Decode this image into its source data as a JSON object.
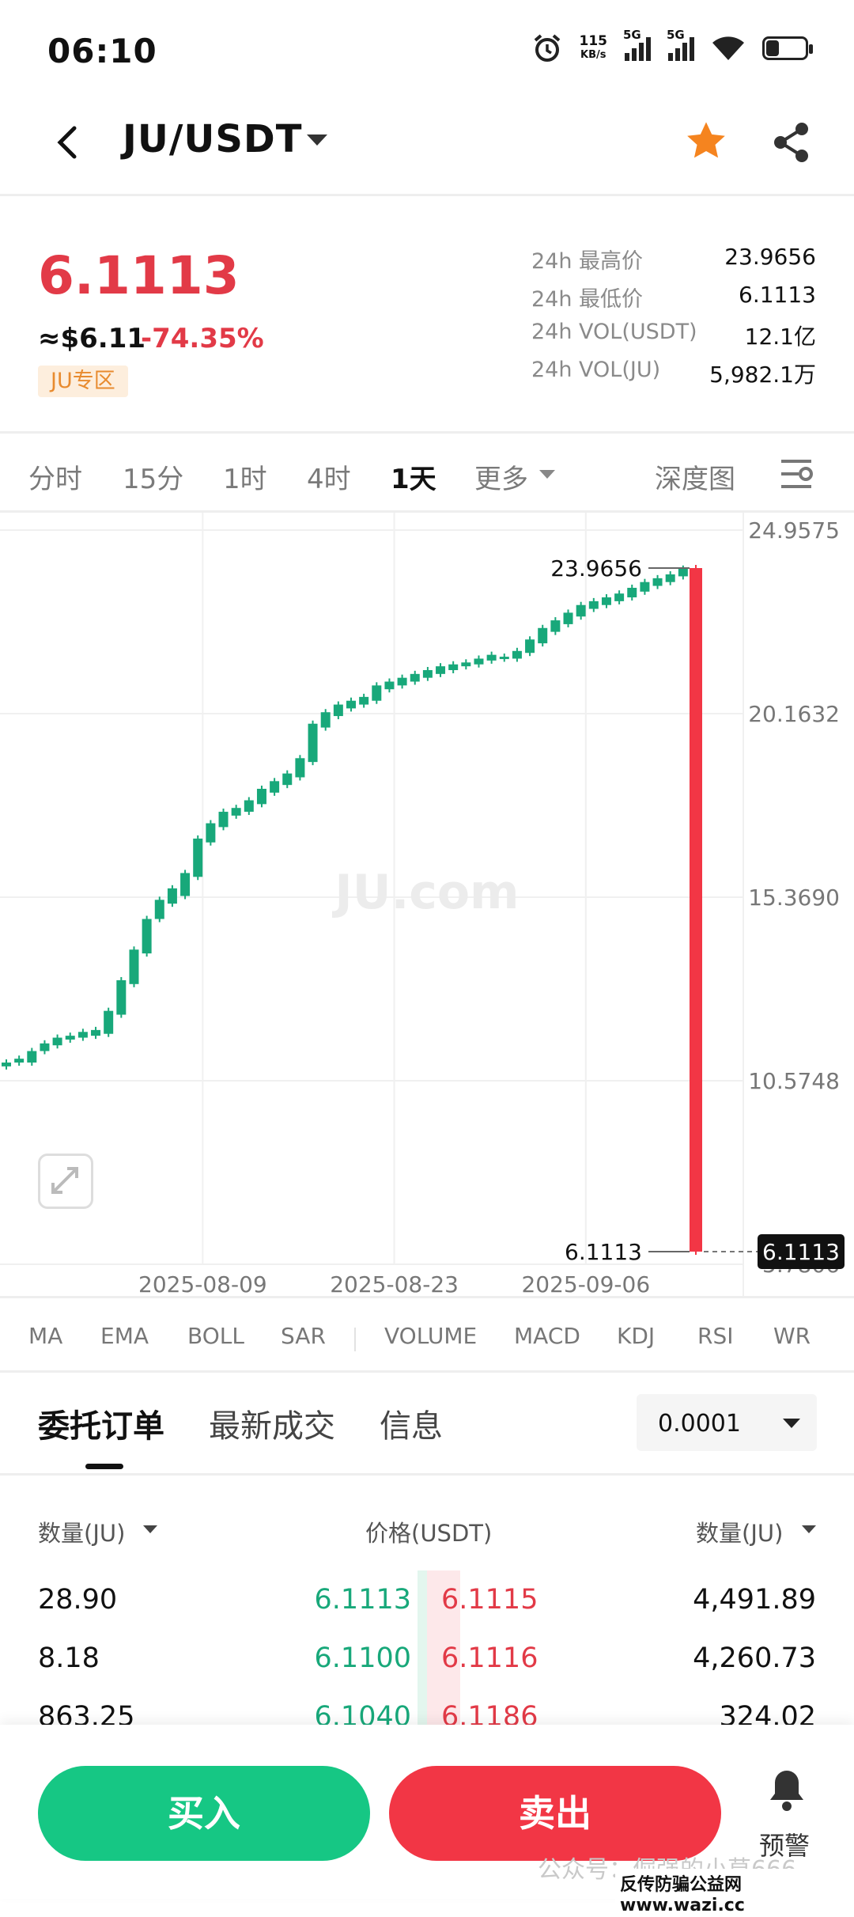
{
  "status_bar": {
    "time": "06:10",
    "net_speed_value": "115",
    "net_speed_unit": "KB/s",
    "sim1": "5G",
    "sim2": "5G"
  },
  "header": {
    "pair": "JU/USDT"
  },
  "ticker": {
    "price": "6.1113",
    "usd_equiv": "≈$6.11",
    "change": "-74.35%",
    "zone_tag": "JU专区",
    "stats": [
      {
        "label": "24h 最高价",
        "value": "23.9656"
      },
      {
        "label": "24h 最低价",
        "value": "6.1113"
      },
      {
        "label": "24h VOL(USDT)",
        "value": "12.1亿"
      },
      {
        "label": "24h VOL(JU)",
        "value": "5,982.1万"
      }
    ]
  },
  "timeframes": {
    "items": [
      "分时",
      "15分",
      "1时",
      "4时",
      "1天",
      "更多"
    ],
    "active": "1天",
    "depth": "深度图"
  },
  "chart_data": {
    "type": "candlestick",
    "y_ticks": [
      "24.9575",
      "20.1632",
      "15.3690",
      "10.5748",
      "5.7806"
    ],
    "x_ticks": [
      "2025-08-09",
      "2025-08-23",
      "2025-09-06"
    ],
    "ylim": [
      5.7806,
      24.9575
    ],
    "annotations": {
      "high": "23.9656",
      "low": "6.1113",
      "last_price_tag": "6.1113"
    },
    "watermark": "JU.com",
    "candles": [
      {
        "o": 10.95,
        "c": 11.05
      },
      {
        "o": 11.05,
        "c": 11.15
      },
      {
        "o": 11.05,
        "c": 11.35
      },
      {
        "o": 11.35,
        "c": 11.55
      },
      {
        "o": 11.5,
        "c": 11.7
      },
      {
        "o": 11.65,
        "c": 11.75
      },
      {
        "o": 11.7,
        "c": 11.85
      },
      {
        "o": 11.75,
        "c": 11.9
      },
      {
        "o": 11.8,
        "c": 12.4
      },
      {
        "o": 12.3,
        "c": 13.2
      },
      {
        "o": 13.1,
        "c": 14.0
      },
      {
        "o": 13.9,
        "c": 14.8
      },
      {
        "o": 14.8,
        "c": 15.3
      },
      {
        "o": 15.2,
        "c": 15.6
      },
      {
        "o": 15.4,
        "c": 16.0
      },
      {
        "o": 15.9,
        "c": 16.9
      },
      {
        "o": 16.8,
        "c": 17.3
      },
      {
        "o": 17.2,
        "c": 17.6
      },
      {
        "o": 17.5,
        "c": 17.7
      },
      {
        "o": 17.6,
        "c": 17.9
      },
      {
        "o": 17.8,
        "c": 18.2
      },
      {
        "o": 18.1,
        "c": 18.4
      },
      {
        "o": 18.3,
        "c": 18.6
      },
      {
        "o": 18.5,
        "c": 19.0
      },
      {
        "o": 18.9,
        "c": 19.9
      },
      {
        "o": 19.8,
        "c": 20.2
      },
      {
        "o": 20.1,
        "c": 20.4
      },
      {
        "o": 20.3,
        "c": 20.5
      },
      {
        "o": 20.4,
        "c": 20.6
      },
      {
        "o": 20.5,
        "c": 20.9
      },
      {
        "o": 20.8,
        "c": 21.0
      },
      {
        "o": 20.9,
        "c": 21.1
      },
      {
        "o": 21.0,
        "c": 21.2
      },
      {
        "o": 21.1,
        "c": 21.3
      },
      {
        "o": 21.2,
        "c": 21.4
      },
      {
        "o": 21.3,
        "c": 21.45
      },
      {
        "o": 21.4,
        "c": 21.5
      },
      {
        "o": 21.45,
        "c": 21.6
      },
      {
        "o": 21.55,
        "c": 21.7
      },
      {
        "o": 21.6,
        "c": 21.65
      },
      {
        "o": 21.6,
        "c": 21.8
      },
      {
        "o": 21.75,
        "c": 22.1
      },
      {
        "o": 22.0,
        "c": 22.4
      },
      {
        "o": 22.3,
        "c": 22.6
      },
      {
        "o": 22.5,
        "c": 22.8
      },
      {
        "o": 22.7,
        "c": 23.0
      },
      {
        "o": 22.9,
        "c": 23.1
      },
      {
        "o": 23.0,
        "c": 23.2
      },
      {
        "o": 23.1,
        "c": 23.3
      },
      {
        "o": 23.2,
        "c": 23.45
      },
      {
        "o": 23.35,
        "c": 23.6
      },
      {
        "o": 23.5,
        "c": 23.7
      },
      {
        "o": 23.6,
        "c": 23.8
      },
      {
        "o": 23.75,
        "c": 23.95
      },
      {
        "o": 23.9656,
        "c": 6.1113
      }
    ]
  },
  "indicators": [
    "MA",
    "EMA",
    "BOLL",
    "SAR",
    "VOLUME",
    "MACD",
    "KDJ",
    "RSI",
    "WR"
  ],
  "orders": {
    "tabs": [
      "委托订单",
      "最新成交",
      "信息"
    ],
    "precision": "0.0001",
    "col_left": "数量(JU)",
    "col_mid": "价格(USDT)",
    "col_right": "数量(JU)",
    "rows": [
      {
        "bq": "28.90",
        "bp": "6.1113",
        "sp": "6.1115",
        "sq": "4,491.89"
      },
      {
        "bq": "8.18",
        "bp": "6.1100",
        "sp": "6.1116",
        "sq": "4,260.73"
      },
      {
        "bq": "863.25",
        "bp": "6.1040",
        "sp": "6.1186",
        "sq": "324.02"
      }
    ]
  },
  "actions": {
    "buy": "买入",
    "sell": "卖出",
    "alert": "预警"
  },
  "watermark": {
    "wechat": "公众号：倔强的小草666",
    "site": "反传防骗公益网 www.wazi.cc"
  },
  "colors": {
    "up": "#18a87a",
    "down": "#f23645",
    "accent": "#f5841f"
  }
}
